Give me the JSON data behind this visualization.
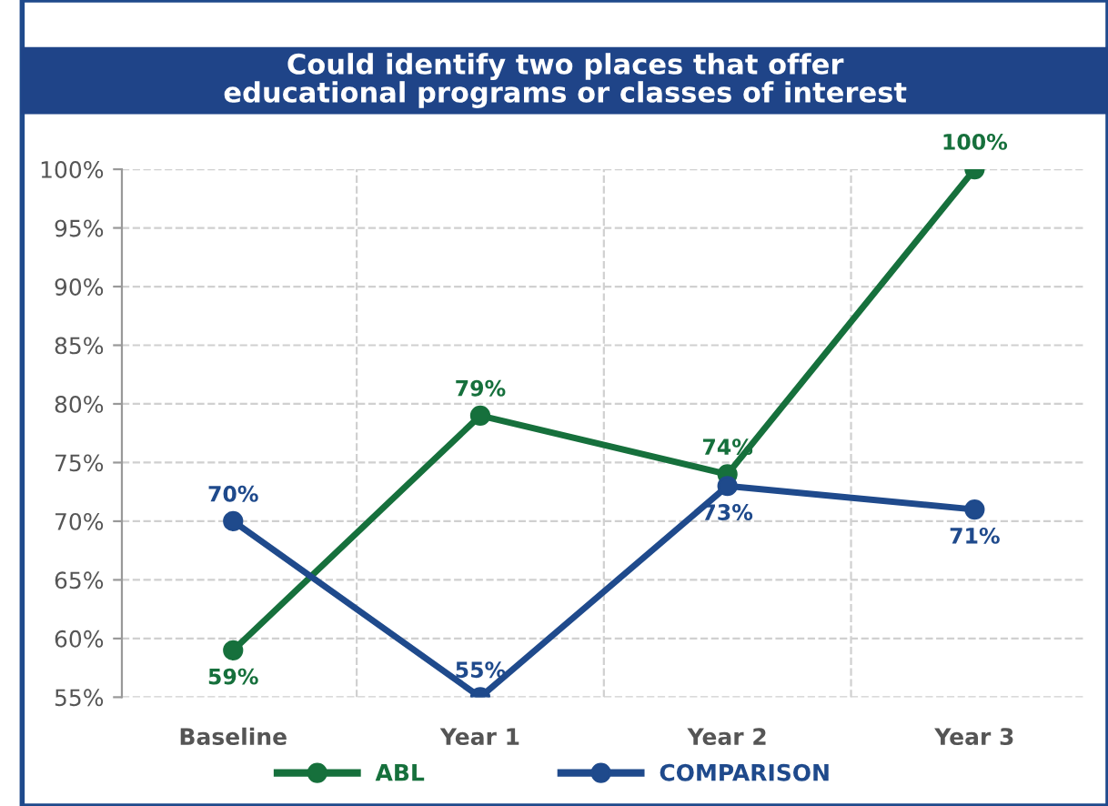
{
  "chart_data": {
    "type": "line",
    "title": "Could identify two places that offer\neducational programs or classes of interest",
    "categories": [
      "Baseline",
      "Year 1",
      "Year 2",
      "Year 3"
    ],
    "series": [
      {
        "name": "ABL",
        "color": "#16703c",
        "values": [
          59,
          79,
          74,
          100
        ],
        "value_labels": [
          "59%",
          "79%",
          "74%",
          "100%"
        ]
      },
      {
        "name": "COMPARISON",
        "color": "#1f4a8c",
        "values": [
          70,
          55,
          73,
          71
        ],
        "value_labels": [
          "70%",
          "55%",
          "73%",
          "71%"
        ]
      }
    ],
    "ylim": [
      55,
      100
    ],
    "yticks": [
      {
        "value": 55,
        "label": "55%"
      },
      {
        "value": 60,
        "label": "60%"
      },
      {
        "value": 65,
        "label": "65%"
      },
      {
        "value": 70,
        "label": "70%"
      },
      {
        "value": 75,
        "label": "75%"
      },
      {
        "value": 80,
        "label": "80%"
      },
      {
        "value": 85,
        "label": "85%"
      },
      {
        "value": 90,
        "label": "90%"
      },
      {
        "value": 95,
        "label": "95%"
      },
      {
        "value": 100,
        "label": "100%"
      }
    ],
    "grid": true,
    "legend": "bottom",
    "marker": "circle",
    "line_style": "solid"
  }
}
